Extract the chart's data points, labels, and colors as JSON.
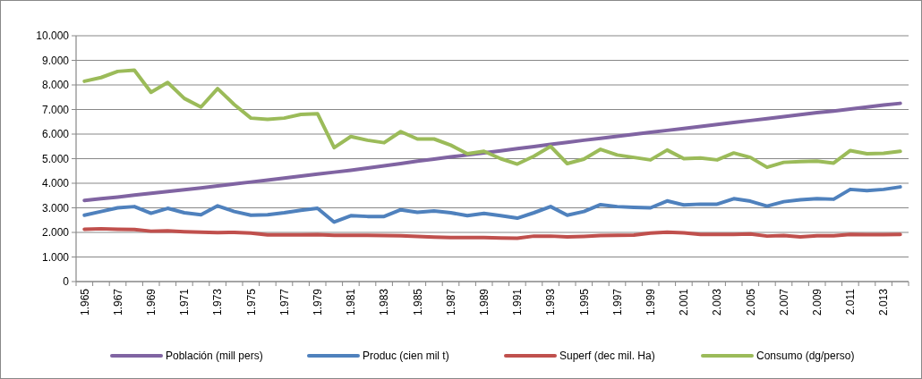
{
  "chart_data": {
    "type": "line",
    "categories": [
      "1.965",
      null,
      "1.967",
      null,
      "1.969",
      null,
      "1.971",
      null,
      "1.973",
      null,
      "1.975",
      null,
      "1.977",
      null,
      "1.979",
      null,
      "1.981",
      null,
      "1.983",
      null,
      "1.985",
      null,
      "1.987",
      null,
      "1.989",
      null,
      "1.991",
      null,
      "1.993",
      null,
      "1.995",
      null,
      "1.997",
      null,
      "1.999",
      null,
      "2.001",
      null,
      "2.003",
      null,
      "2.005",
      null,
      "2.007",
      null,
      "2.009",
      null,
      "2.011",
      null,
      "2.013",
      null
    ],
    "ylim": [
      0,
      10000
    ],
    "yticks": [
      {
        "value": 0,
        "label": "0"
      },
      {
        "value": 1000,
        "label": "1.000"
      },
      {
        "value": 2000,
        "label": "2.000"
      },
      {
        "value": 3000,
        "label": "3.000"
      },
      {
        "value": 4000,
        "label": "4.000"
      },
      {
        "value": 5000,
        "label": "5.000"
      },
      {
        "value": 6000,
        "label": "6.000"
      },
      {
        "value": 7000,
        "label": "7.000"
      },
      {
        "value": 8000,
        "label": "8.000"
      },
      {
        "value": 9000,
        "label": "9.000"
      },
      {
        "value": 10000,
        "label": "10.000"
      }
    ],
    "grid": "y",
    "legend": "bottom",
    "marker": "none",
    "line_style": "solid",
    "series": [
      {
        "name": "Población (mill pers)",
        "color": "#8064a2",
        "values": [
          3300,
          3370,
          3440,
          3520,
          3590,
          3660,
          3740,
          3810,
          3890,
          3970,
          4050,
          4130,
          4210,
          4290,
          4370,
          4450,
          4530,
          4620,
          4710,
          4800,
          4900,
          4980,
          5070,
          5150,
          5240,
          5320,
          5410,
          5490,
          5580,
          5660,
          5750,
          5830,
          5910,
          5990,
          6070,
          6150,
          6230,
          6310,
          6390,
          6470,
          6550,
          6630,
          6710,
          6790,
          6870,
          6940,
          7020,
          7100,
          7180,
          7250
        ]
      },
      {
        "name": "Produc (cien mil t)",
        "color": "#4f81bd",
        "values": [
          2700,
          2850,
          3000,
          3050,
          2780,
          2980,
          2800,
          2720,
          3080,
          2850,
          2700,
          2720,
          2800,
          2900,
          2980,
          2420,
          2680,
          2650,
          2650,
          2920,
          2820,
          2870,
          2800,
          2680,
          2770,
          2680,
          2580,
          2800,
          3050,
          2700,
          2850,
          3130,
          3050,
          3020,
          3000,
          3280,
          3120,
          3150,
          3150,
          3370,
          3270,
          3070,
          3250,
          3330,
          3370,
          3350,
          3750,
          3700,
          3750,
          3850
        ]
      },
      {
        "name": "Superf (dec mil. Ha)",
        "color": "#c0504d",
        "values": [
          2130,
          2150,
          2130,
          2120,
          2050,
          2060,
          2030,
          2010,
          1990,
          2000,
          1970,
          1900,
          1900,
          1900,
          1910,
          1880,
          1880,
          1880,
          1870,
          1860,
          1840,
          1810,
          1790,
          1790,
          1790,
          1770,
          1760,
          1850,
          1850,
          1820,
          1840,
          1870,
          1880,
          1890,
          1970,
          2010,
          1980,
          1920,
          1920,
          1920,
          1940,
          1850,
          1870,
          1820,
          1860,
          1860,
          1920,
          1910,
          1910,
          1920
        ]
      },
      {
        "name": "Consumo (dg/perso)",
        "color": "#9bbb59",
        "values": [
          8150,
          8300,
          8550,
          8600,
          7700,
          8100,
          7450,
          7100,
          7850,
          7200,
          6650,
          6600,
          6650,
          6800,
          6830,
          5450,
          5900,
          5750,
          5650,
          6100,
          5800,
          5800,
          5550,
          5200,
          5300,
          5000,
          4780,
          5100,
          5500,
          4800,
          4980,
          5380,
          5150,
          5050,
          4950,
          5350,
          5000,
          5030,
          4950,
          5230,
          5050,
          4650,
          4850,
          4880,
          4900,
          4820,
          5330,
          5200,
          5220,
          5300
        ]
      }
    ]
  }
}
